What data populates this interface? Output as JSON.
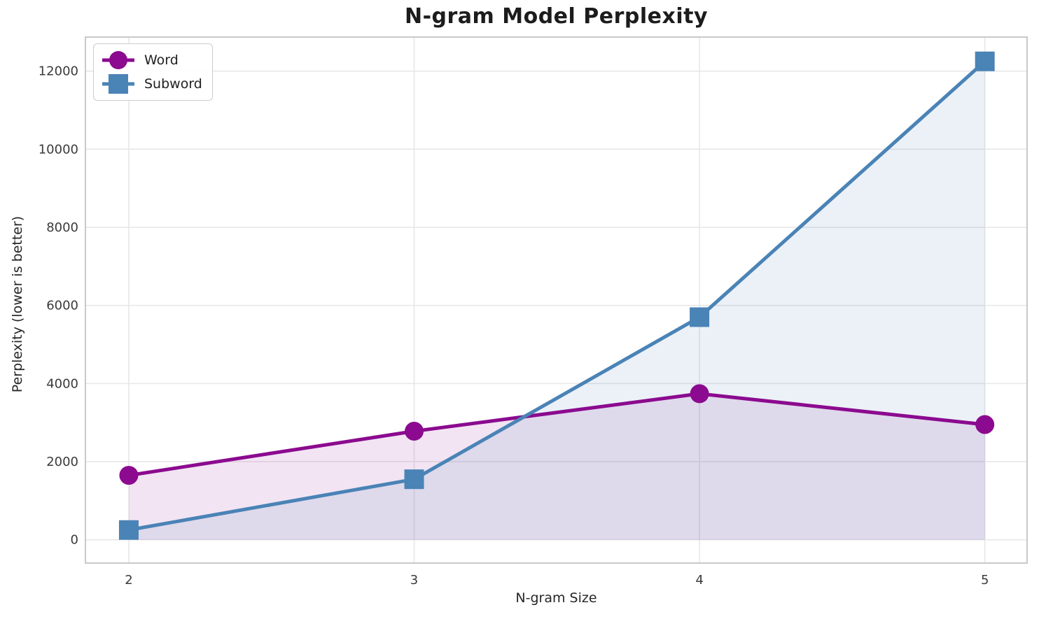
{
  "chart_data": {
    "type": "line",
    "title": "N-gram Model Perplexity",
    "xlabel": "N-gram Size",
    "ylabel": "Perplexity (lower is better)",
    "x": [
      2,
      3,
      4,
      5
    ],
    "x_tick_labels": [
      "2",
      "3",
      "4",
      "5"
    ],
    "y_ticks": [
      0,
      2000,
      4000,
      6000,
      8000,
      10000,
      12000
    ],
    "xlim": [
      1.848,
      5.148
    ],
    "ylim": [
      -596,
      12872
    ],
    "grid": true,
    "legend_position": "upper-left",
    "series": [
      {
        "name": "Word",
        "marker": "circle",
        "color": "#8B0A8F",
        "fill_alpha": 0.11,
        "values": [
          1650,
          2780,
          3740,
          2950
        ]
      },
      {
        "name": "Subword",
        "marker": "square",
        "color": "#4A83B6",
        "fill_alpha": 0.11,
        "values": [
          250,
          1550,
          5700,
          12250
        ]
      }
    ],
    "styles": {
      "grid_color": "#e7e7e7",
      "spine_color": "#c9c9c9",
      "tick_color": "#3a3a3a",
      "text_color": "#262626",
      "background": "#ffffff"
    }
  }
}
